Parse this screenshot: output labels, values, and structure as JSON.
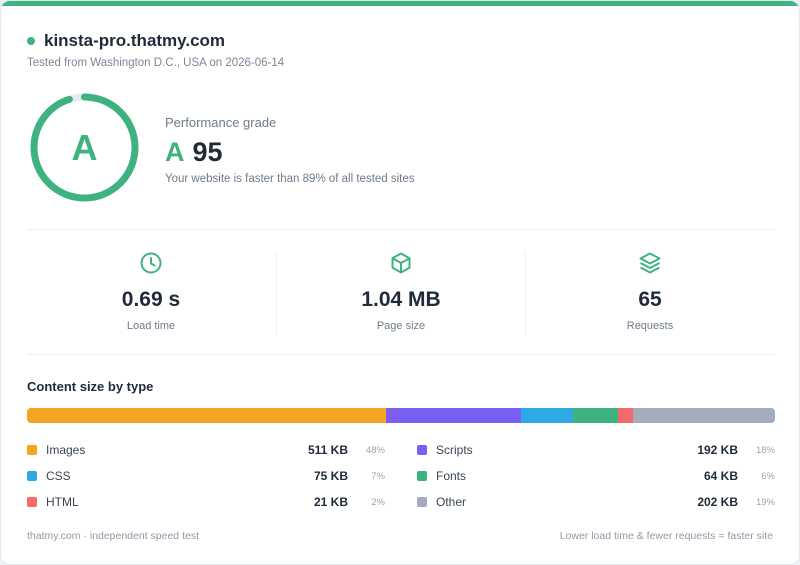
{
  "site": {
    "name": "kinsta-pro.thatmy.com",
    "tested": "Tested from Washington D.C., USA on 2026-06-14"
  },
  "grade": {
    "letter": "A",
    "score": "95",
    "percent": 95,
    "label": "Performance grade",
    "description": "Your website is faster than 89% of all tested sites"
  },
  "colors": {
    "accent": "#3fb37f"
  },
  "stats": [
    {
      "icon": "clock-icon",
      "value": "0.69 s",
      "label": "Load time"
    },
    {
      "icon": "box-icon",
      "value": "1.04 MB",
      "label": "Page size"
    },
    {
      "icon": "layers-icon",
      "value": "65",
      "label": "Requests"
    }
  ],
  "content": {
    "title": "Content size by type",
    "items": [
      {
        "name": "Images",
        "size": "511 KB",
        "pct": "48%",
        "share": 48,
        "color": "#f5a524"
      },
      {
        "name": "Scripts",
        "size": "192 KB",
        "pct": "18%",
        "share": 18,
        "color": "#7b5ff5"
      },
      {
        "name": "CSS",
        "size": "75 KB",
        "pct": "7%",
        "share": 7,
        "color": "#2ea9e6"
      },
      {
        "name": "Fonts",
        "size": "64 KB",
        "pct": "6%",
        "share": 6,
        "color": "#3fb37f"
      },
      {
        "name": "HTML",
        "size": "21 KB",
        "pct": "2%",
        "share": 2,
        "color": "#f46a6a"
      },
      {
        "name": "Other",
        "size": "202 KB",
        "pct": "19%",
        "share": 19,
        "color": "#a3adbb"
      }
    ]
  },
  "footer": {
    "left": "thatmy.com · independent speed test",
    "right": "Lower load time & fewer requests = faster site"
  }
}
